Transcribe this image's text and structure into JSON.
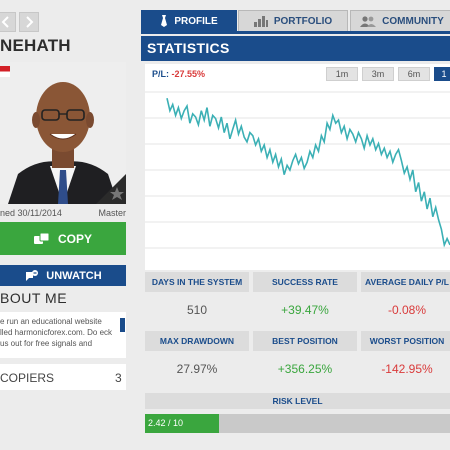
{
  "nav": {
    "back_icon": "chevron-left-icon",
    "forward_icon": "chevron-right-icon"
  },
  "user": {
    "name": "NEHATH",
    "joined": "ned 30/11/2014",
    "rank": "Master"
  },
  "actions": {
    "copy_label": "COPY",
    "unwatch_label": "UNWATCH"
  },
  "about": {
    "title": "BOUT ME",
    "text": "e run an educational website lled harmonicforex.com. Do eck us out for free signals and"
  },
  "copiers": {
    "label": "COPIERS",
    "count": "3"
  },
  "tabs": [
    {
      "label": "PROFILE",
      "icon": "tie-icon",
      "active": true
    },
    {
      "label": "PORTFOLIO",
      "icon": "bar-chart-icon",
      "active": false
    },
    {
      "label": "COMMUNITY",
      "icon": "users-icon",
      "active": false
    }
  ],
  "statistics": {
    "title": "STATISTICS",
    "pl_label": "P/L:",
    "pl_value": "-27.55%",
    "ranges": [
      {
        "label": "1m",
        "active": false
      },
      {
        "label": "3m",
        "active": false
      },
      {
        "label": "6m",
        "active": false
      },
      {
        "label": "1",
        "active": true
      }
    ]
  },
  "metrics_row1": [
    {
      "label": "DAYS IN THE SYSTEM",
      "value": "510",
      "tone": "neutral"
    },
    {
      "label": "SUCCESS RATE",
      "value": "+39.47%",
      "tone": "pos"
    },
    {
      "label": "AVERAGE DAILY P/L",
      "value": "-0.08%",
      "tone": "neg"
    }
  ],
  "metrics_row2": [
    {
      "label": "MAX DRAWDOWN",
      "value": "27.97%",
      "tone": "neutral"
    },
    {
      "label": "BEST POSITION",
      "value": "+356.25%",
      "tone": "pos"
    },
    {
      "label": "WORST POSITION",
      "value": "-142.95%",
      "tone": "neg"
    }
  ],
  "risk": {
    "title": "RISK LEVEL",
    "value_label": "2.42 / 10",
    "level": 2.42,
    "max": 10
  },
  "colors": {
    "brand_blue": "#1a4c8b",
    "green": "#3aa63e",
    "red": "#d93a3a",
    "chart_line": "#3bb0b5"
  },
  "chart_data": {
    "type": "line",
    "title": "",
    "xlabel": "",
    "ylabel": "",
    "grid": true,
    "x": [
      0,
      1,
      2,
      3,
      4,
      5,
      6,
      7,
      8,
      9,
      10,
      11,
      12,
      13,
      14,
      15,
      16,
      17,
      18,
      19,
      20,
      21,
      22,
      23,
      24,
      25,
      26,
      27,
      28,
      29,
      30,
      31,
      32,
      33,
      34,
      35,
      36,
      37,
      38,
      39,
      40,
      41,
      42,
      43,
      44,
      45,
      46,
      47,
      48,
      49,
      50,
      51,
      52,
      53,
      54,
      55,
      56,
      57,
      58,
      59,
      60,
      61,
      62,
      63,
      64,
      65,
      66,
      67,
      68,
      69,
      70,
      71,
      72,
      73,
      74,
      75,
      76,
      77,
      78,
      79,
      80,
      81,
      82,
      83,
      84,
      85,
      86,
      87,
      88,
      89,
      90,
      91,
      92,
      93,
      94,
      95,
      96,
      97,
      98,
      99
    ],
    "series": [
      {
        "values": [
          96,
          88,
          92,
          85,
          90,
          83,
          88,
          91,
          80,
          86,
          84,
          79,
          88,
          82,
          90,
          78,
          85,
          83,
          77,
          84,
          74,
          80,
          70,
          76,
          82,
          73,
          78,
          71,
          68,
          74,
          72,
          66,
          70,
          62,
          66,
          58,
          63,
          55,
          60,
          52,
          57,
          47,
          53,
          50,
          56,
          60,
          54,
          58,
          51,
          55,
          62,
          58,
          66,
          62,
          72,
          68,
          80,
          76,
          85,
          80,
          82,
          74,
          78,
          70,
          76,
          73,
          68,
          74,
          70,
          64,
          72,
          66,
          70,
          63,
          67,
          60,
          64,
          58,
          62,
          55,
          60,
          63,
          56,
          48,
          52,
          44,
          50,
          36,
          42,
          30,
          36,
          25,
          32,
          20,
          26,
          18,
          12,
          2,
          6,
          2
        ]
      }
    ]
  }
}
